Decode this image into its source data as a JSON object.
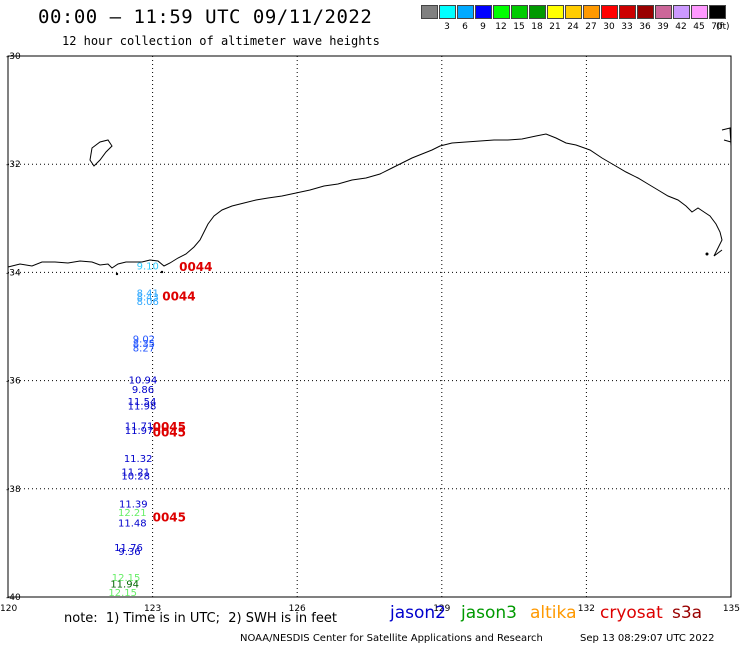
{
  "header": {
    "title": "00:00 – 11:59 UTC 09/11/2022",
    "subtitle": "12 hour collection of altimeter wave heights"
  },
  "color_scale": {
    "unit_label": "(ft)",
    "bins": [
      {
        "label": "",
        "color": "#808080"
      },
      {
        "label": "3",
        "color": "#00ffff"
      },
      {
        "label": "6",
        "color": "#00aaff"
      },
      {
        "label": "9",
        "color": "#0000ff"
      },
      {
        "label": "12",
        "color": "#00ff00"
      },
      {
        "label": "15",
        "color": "#00cc00"
      },
      {
        "label": "18",
        "color": "#009900"
      },
      {
        "label": "21",
        "color": "#ffff00"
      },
      {
        "label": "24",
        "color": "#ffcc00"
      },
      {
        "label": "27",
        "color": "#ff9900"
      },
      {
        "label": "30",
        "color": "#ff0000"
      },
      {
        "label": "33",
        "color": "#cc0000"
      },
      {
        "label": "36",
        "color": "#990000"
      },
      {
        "label": "39",
        "color": "#cc6699"
      },
      {
        "label": "42",
        "color": "#cc99ff"
      },
      {
        "label": "45",
        "color": "#ff99ff"
      },
      {
        "label": "70",
        "color": "#000000"
      }
    ]
  },
  "map": {
    "lat_labels": [
      "-30",
      "-32",
      "-34",
      "-36",
      "-38",
      "-40"
    ],
    "lon_labels": [
      "120",
      "123",
      "126",
      "129",
      "132",
      "135"
    ],
    "observations": [
      {
        "text": "9.10",
        "color": "#33ccff",
        "lon": 122.9,
        "lat": -33.95
      },
      {
        "text": "8.41",
        "color": "#33aaff",
        "lon": 122.9,
        "lat": -34.45
      },
      {
        "text": "8.43",
        "color": "#33aaff",
        "lon": 122.9,
        "lat": -34.52
      },
      {
        "text": "8.06",
        "color": "#33aaff",
        "lon": 122.9,
        "lat": -34.6
      },
      {
        "text": "9.02",
        "color": "#2255ff",
        "lon": 122.82,
        "lat": -35.3
      },
      {
        "text": "8.35",
        "color": "#2255ff",
        "lon": 122.82,
        "lat": -35.38
      },
      {
        "text": "8.27",
        "color": "#2255ff",
        "lon": 122.82,
        "lat": -35.46
      },
      {
        "text": "10.94",
        "color": "#0000cc",
        "lon": 122.8,
        "lat": -36.05
      },
      {
        "text": "9.86",
        "color": "#0000cc",
        "lon": 122.8,
        "lat": -36.23
      },
      {
        "text": "11.54",
        "color": "#0000cc",
        "lon": 122.78,
        "lat": -36.45
      },
      {
        "text": "11.98",
        "color": "#0000cc",
        "lon": 122.78,
        "lat": -36.53
      },
      {
        "text": "11.71",
        "color": "#0000cc",
        "lon": 122.72,
        "lat": -36.9
      },
      {
        "text": "11.97",
        "color": "#0000cc",
        "lon": 122.72,
        "lat": -36.99
      },
      {
        "text": "11.32",
        "color": "#0000cc",
        "lon": 122.7,
        "lat": -37.5
      },
      {
        "text": "11.21",
        "color": "#0000cc",
        "lon": 122.65,
        "lat": -37.75
      },
      {
        "text": "10.28",
        "color": "#0000cc",
        "lon": 122.65,
        "lat": -37.83
      },
      {
        "text": "11.39",
        "color": "#0000cc",
        "lon": 122.6,
        "lat": -38.35
      },
      {
        "text": "12.21",
        "color": "#66ee66",
        "lon": 122.58,
        "lat": -38.5
      },
      {
        "text": "11.48",
        "color": "#0000cc",
        "lon": 122.58,
        "lat": -38.7
      },
      {
        "text": "11.76",
        "color": "#0000cc",
        "lon": 122.5,
        "lat": -39.15
      },
      {
        "text": "9.36",
        "color": "#0000cc",
        "lon": 122.52,
        "lat": -39.22
      },
      {
        "text": "12.15",
        "color": "#66ee66",
        "lon": 122.45,
        "lat": -39.7
      },
      {
        "text": "11.94",
        "color": "#006600",
        "lon": 122.42,
        "lat": -39.82
      },
      {
        "text": "12.15",
        "color": "#66ee66",
        "lon": 122.38,
        "lat": -39.98
      }
    ],
    "times": [
      {
        "text": "0044",
        "color": "#dd0000",
        "lon": 123.55,
        "lat": -33.97
      },
      {
        "text": "0044",
        "color": "#dd0000",
        "lon": 123.2,
        "lat": -34.52
      },
      {
        "text": "0045",
        "color": "#dd0000",
        "lon": 123.0,
        "lat": -36.93
      },
      {
        "text": "0045",
        "color": "#dd0000",
        "lon": 123.0,
        "lat": -37.03
      },
      {
        "text": "0045",
        "color": "#dd0000",
        "lon": 123.0,
        "lat": -38.6
      }
    ]
  },
  "footer": {
    "note": "note:  1) Time is in UTC;  2) SWH is in feet",
    "credit": "NOAA/NESDIS Center for Satellite Applications and Research",
    "timestamp": "Sep 13 08:29:07 UTC 2022",
    "legend": [
      {
        "name": "jason2",
        "color": "#0000cc"
      },
      {
        "name": "jason3",
        "color": "#009900"
      },
      {
        "name": "altika",
        "color": "#ff9900"
      },
      {
        "name": "cryosat",
        "color": "#dd0000"
      },
      {
        "name": "s3a",
        "color": "#990000"
      }
    ]
  }
}
